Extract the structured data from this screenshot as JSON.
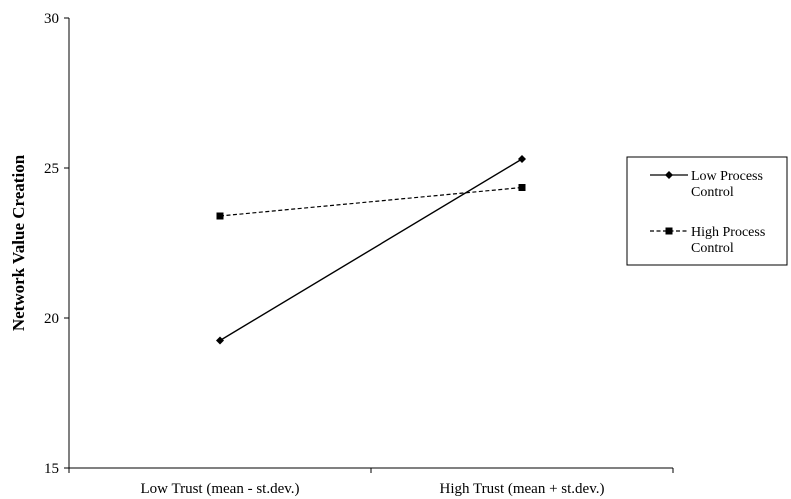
{
  "chart_data": {
    "type": "line",
    "title": "",
    "xlabel": "",
    "ylabel": "Network  Value Creation",
    "categories": [
      "Low Trust (mean - st.dev.)",
      "High Trust (mean + st.dev.)"
    ],
    "ylim": [
      15,
      30
    ],
    "yticks": [
      15,
      20,
      25,
      30
    ],
    "grid": false,
    "legend_position": "right",
    "series": [
      {
        "name": "Low Process Control",
        "name_lines": [
          "Low Process",
          "Control"
        ],
        "values": [
          19.25,
          25.3
        ],
        "marker": "diamond",
        "line_style": "solid",
        "color": "#000000"
      },
      {
        "name": "High Process Control",
        "name_lines": [
          "High Process",
          "Control"
        ],
        "values": [
          23.4,
          24.35
        ],
        "marker": "square",
        "line_style": "dashed",
        "color": "#000000"
      }
    ]
  }
}
